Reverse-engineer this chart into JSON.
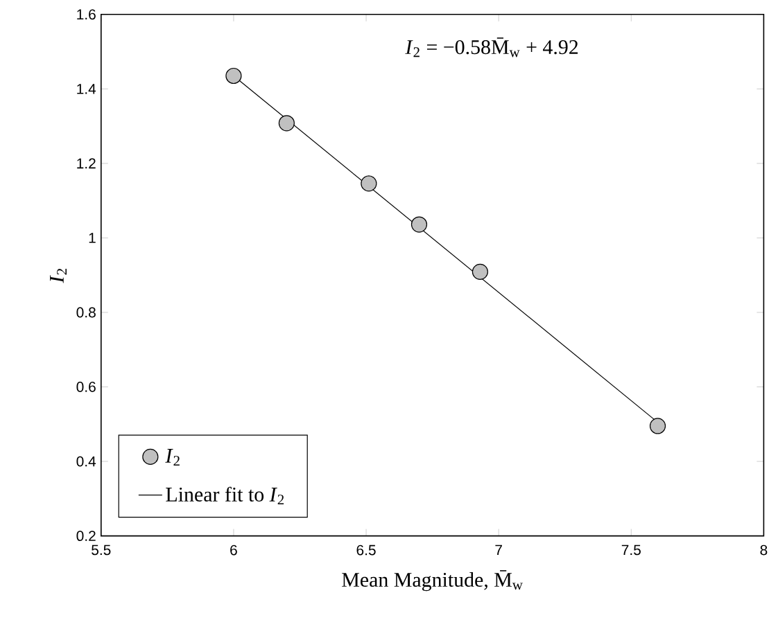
{
  "chart_data": {
    "type": "scatter",
    "xlabel": "Mean Magnitude, M̄$_{w}$",
    "ylabel": "*I*$_{2}$",
    "annotations": [
      "*I*$_{2}$ = −0.58M̄$_{w}$ + 4.92"
    ],
    "xlim": [
      5.5,
      8
    ],
    "ylim": [
      0.2,
      1.6
    ],
    "xticks": [
      5.5,
      6,
      6.5,
      7,
      7.5,
      8
    ],
    "yticks": [
      0.2,
      0.4,
      0.6,
      0.8,
      1,
      1.2,
      1.4,
      1.6
    ],
    "grid": false,
    "legend": "bottom left",
    "series": [
      {
        "name": "*I*$_{2}$",
        "marker": "circle",
        "color": "#c0c0c0",
        "x": [
          6.0,
          6.2,
          6.51,
          6.7,
          6.93,
          7.6
        ],
        "values": [
          1.435,
          1.308,
          1.146,
          1.036,
          0.909,
          0.495
        ]
      },
      {
        "name": "Linear fit to *I*$_{2}$",
        "type": "line",
        "marker": "none",
        "color": "#000000",
        "line_style": "solid",
        "x": [
          6.0,
          7.6
        ],
        "values": [
          1.435,
          0.505
        ]
      }
    ]
  }
}
